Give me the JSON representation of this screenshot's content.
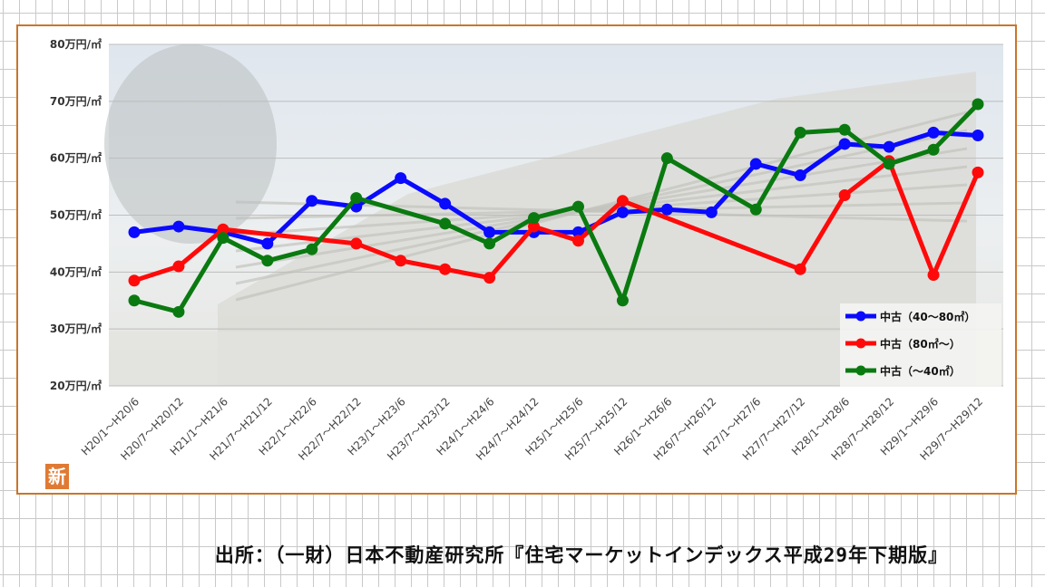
{
  "source_text": "出所：（一財）日本不動産研究所『住宅マーケットインデックス平成29年下期版』",
  "badge_text": "新",
  "chart_data": {
    "type": "line",
    "y_unit": "万円/㎡",
    "ylim": [
      20,
      80
    ],
    "yticks": [
      20,
      30,
      40,
      50,
      60,
      70,
      80
    ],
    "ytick_labels": [
      "20万円/㎡",
      "30万円/㎡",
      "40万円/㎡",
      "50万円/㎡",
      "60万円/㎡",
      "70万円/㎡",
      "80万円/㎡"
    ],
    "grid": true,
    "legend_position": "bottom-right",
    "categories": [
      "H20/1～H20/6",
      "H20/7～H20/12",
      "H21/1～H21/6",
      "H21/7～H21/12",
      "H22/1～H22/6",
      "H22/7～H22/12",
      "H23/1～H23/6",
      "H23/7～H23/12",
      "H24/1～H24/6",
      "H24/7～H24/12",
      "H25/1～H25/6",
      "H25/7～H25/12",
      "H26/1～H26/6",
      "H26/7～H26/12",
      "H27/1～H27/6",
      "H27/7～H27/12",
      "H28/1～H28/6",
      "H28/7～H28/12",
      "H29/1～H29/6",
      "H29/7～H29/12"
    ],
    "series": [
      {
        "name": "中古（40～80㎡）",
        "color": "#0a0aff",
        "values": [
          47,
          48,
          47,
          45,
          52.5,
          51.5,
          56.5,
          52,
          47,
          47,
          47,
          50.5,
          51,
          50.5,
          59,
          57,
          62.5,
          62,
          64.5,
          64
        ]
      },
      {
        "name": "中古（80㎡～）",
        "color": "#ff0a0a",
        "values": [
          38.5,
          41,
          47.5,
          null,
          null,
          45,
          42,
          40.5,
          39,
          48,
          45.5,
          52.5,
          null,
          null,
          null,
          40.5,
          53.5,
          59.5,
          39.5,
          57.5
        ]
      },
      {
        "name": "中古（～40㎡）",
        "color": "#0a7a10",
        "values": [
          35,
          33,
          46,
          42,
          44,
          53,
          null,
          48.5,
          45,
          49.5,
          51.5,
          35,
          60,
          null,
          51,
          64.5,
          65,
          59,
          61.5,
          69.5
        ]
      }
    ]
  }
}
